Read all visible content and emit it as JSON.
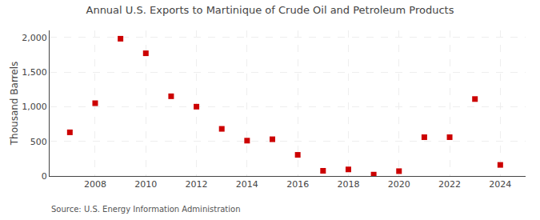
{
  "chart_data": {
    "type": "scatter",
    "title": "Annual U.S. Exports to Martinique of Crude Oil and Petroleum Products",
    "ylabel": "Thousand Barrels",
    "annotations": [
      "Source: U.S. Energy Information Administration"
    ],
    "x": [
      2007,
      2008,
      2009,
      2010,
      2011,
      2012,
      2013,
      2014,
      2015,
      2016,
      2017,
      2018,
      2019,
      2020,
      2021,
      2022,
      2023,
      2024
    ],
    "values": [
      630,
      1050,
      1980,
      1770,
      1150,
      1000,
      680,
      510,
      530,
      305,
      75,
      95,
      20,
      70,
      560,
      560,
      1110,
      160
    ],
    "color": "#cc0000",
    "marker": "square",
    "xlim": [
      2006.2,
      2025.0
    ],
    "xticks": [
      2008,
      2010,
      2012,
      2014,
      2016,
      2018,
      2020,
      2022,
      2024
    ],
    "ylim": [
      0,
      2100
    ],
    "yticks": [
      0,
      500,
      {
        "value": 1000,
        "label": "1,000"
      },
      {
        "value": 1500,
        "label": "1,500"
      },
      {
        "value": 2000,
        "label": "2,000"
      }
    ],
    "grid": true
  }
}
